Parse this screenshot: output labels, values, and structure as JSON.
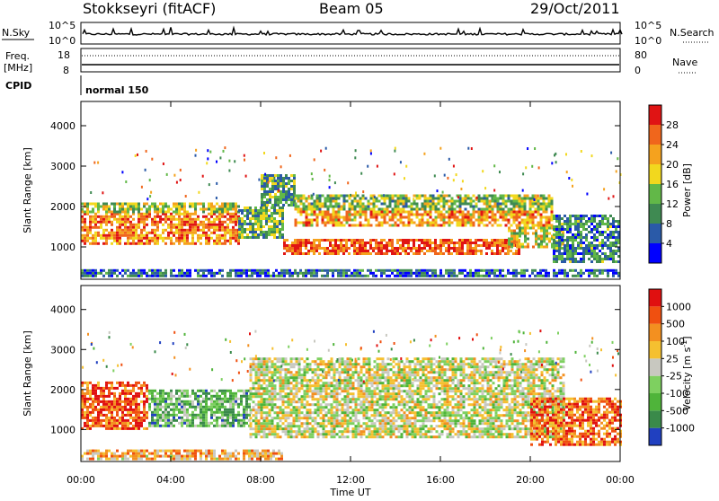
{
  "header": {
    "station": "Stokkseyri (fitACF)",
    "beam": "Beam 05",
    "date": "29/Oct/2011"
  },
  "top_panels": {
    "nsky_label": "N.Sky",
    "nsky_ticks": [
      "10^5",
      "10^0"
    ],
    "nsearch_label": "N.Search",
    "nsearch_ticks": [
      "10^5",
      "10^0"
    ],
    "freq_label": "Freq.",
    "freq_unit": "[MHz]",
    "freq_ticks": [
      "18",
      "8"
    ],
    "nave_label": "Nave",
    "nave_ticks": [
      "80",
      "0"
    ],
    "cpid_label": "CPID",
    "cpid_value": "normal 150"
  },
  "chart_data": [
    {
      "type": "heatmap",
      "name": "power",
      "ylabel": "Slant Range [km]",
      "ylim": [
        200,
        4600
      ],
      "yticks": [
        "4000",
        "3000",
        "2000",
        "1000"
      ],
      "xlim_hours": [
        0,
        24
      ],
      "colorbar_label": "Power [dB]",
      "colorbar_ticks": [
        "28",
        "24",
        "20",
        "16",
        "12",
        "8",
        "4"
      ],
      "colors": [
        "#0000ff",
        "#2a5aa8",
        "#3f8a52",
        "#62b848",
        "#f2d81e",
        "#f5a21e",
        "#f0661c",
        "#e01414"
      ],
      "bands": [
        {
          "t0": 0.0,
          "t1": 7.0,
          "r0": 1100,
          "r1": 1850,
          "level": 0.75
        },
        {
          "t0": 0.0,
          "t1": 7.0,
          "r0": 1850,
          "r1": 2100,
          "level": 0.5
        },
        {
          "t0": 7.0,
          "t1": 9.0,
          "r0": 1200,
          "r1": 2000,
          "level": 0.4
        },
        {
          "t0": 8.0,
          "t1": 9.5,
          "r0": 2000,
          "r1": 2800,
          "level": 0.35
        },
        {
          "t0": 9.0,
          "t1": 19.5,
          "r0": 800,
          "r1": 1200,
          "level": 0.85
        },
        {
          "t0": 9.5,
          "t1": 21.0,
          "r0": 1500,
          "r1": 1900,
          "level": 0.7
        },
        {
          "t0": 9.5,
          "t1": 21.0,
          "r0": 1900,
          "r1": 2300,
          "level": 0.45
        },
        {
          "t0": 19.0,
          "t1": 21.5,
          "r0": 1000,
          "r1": 1500,
          "level": 0.55
        },
        {
          "t0": 21.0,
          "t1": 24.0,
          "r0": 600,
          "r1": 1800,
          "level": 0.3
        },
        {
          "t0": 0.0,
          "t1": 24.0,
          "r0": 250,
          "r1": 450,
          "level": 0.2
        }
      ]
    },
    {
      "type": "heatmap",
      "name": "velocity",
      "ylabel": "Slant Range [km]",
      "ylim": [
        200,
        4600
      ],
      "yticks": [
        "4000",
        "3000",
        "2000",
        "1000"
      ],
      "xlim_hours": [
        0,
        24
      ],
      "xticks": [
        "00:00",
        "04:00",
        "08:00",
        "12:00",
        "16:00",
        "20:00",
        "00:00"
      ],
      "xlabel": "Time UT",
      "colorbar_label": "Velocity",
      "colorbar_unit": "[m s",
      "colorbar_unit_sup": "-1",
      "colorbar_unit_end": "]",
      "colorbar_ticks": [
        "1000",
        "500",
        "100",
        "25",
        "-25",
        "-100",
        "-500",
        "-1000"
      ],
      "colors": [
        "#2040c0",
        "#3a8a4a",
        "#4fb43a",
        "#7ed060",
        "#c8c8c0",
        "#f5c030",
        "#f39020",
        "#f05010",
        "#e01010"
      ],
      "bands": [
        {
          "t0": 0.0,
          "t1": 3.0,
          "r0": 1000,
          "r1": 2200,
          "level": 0.85
        },
        {
          "t0": 3.0,
          "t1": 7.5,
          "r0": 1100,
          "r1": 2000,
          "level": 0.3
        },
        {
          "t0": 7.5,
          "t1": 21.5,
          "r0": 800,
          "r1": 2800,
          "level": 0.5
        },
        {
          "t0": 20.0,
          "t1": 24.0,
          "r0": 600,
          "r1": 1800,
          "level": 0.8
        },
        {
          "t0": 0.0,
          "t1": 9.0,
          "r0": 250,
          "r1": 500,
          "level": 0.65
        }
      ]
    }
  ]
}
